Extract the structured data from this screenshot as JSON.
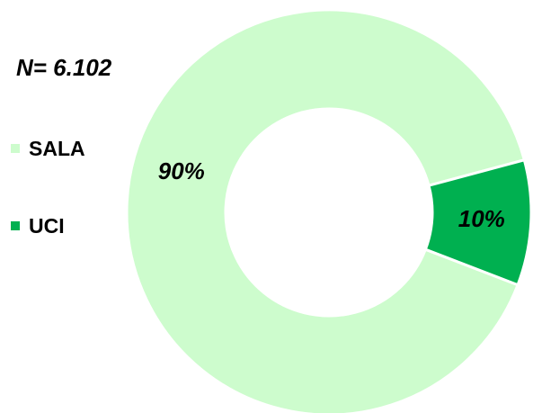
{
  "annotation": {
    "n_text": "N= 6.102"
  },
  "legend": {
    "items": [
      {
        "label": "SALA",
        "color": "#cdfccd"
      },
      {
        "label": "UCI",
        "color": "#00b050"
      }
    ]
  },
  "chart_data": {
    "type": "pie",
    "subtype": "donut",
    "title": "",
    "legend_position": "left",
    "slices": [
      {
        "label": "SALA",
        "value": 90,
        "display": "90%",
        "color": "#cdfccd"
      },
      {
        "label": "UCI",
        "value": 10,
        "display": "10%",
        "color": "#00b050"
      }
    ]
  }
}
